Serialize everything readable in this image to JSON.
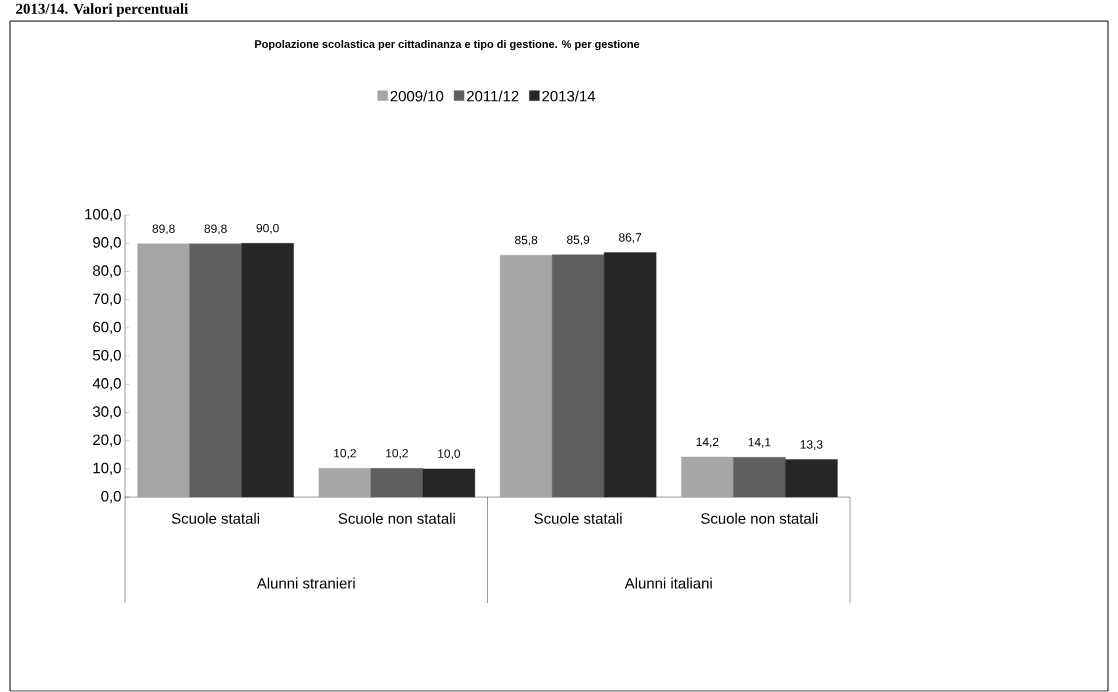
{
  "chart_data": {
    "type": "bar",
    "title": "Popolazione scolastica per cittadinanza e tipo di gestione. % per gestione",
    "categories": [
      "Scuole statali",
      "Scuole non statali",
      "Scuole statali",
      "Scuole non statali"
    ],
    "series": [
      {
        "name": "2009/10",
        "color": "#a6a6a6",
        "values": [
          89.8,
          10.2,
          85.8,
          14.2
        ],
        "value_labels": [
          "89,8",
          "10,2",
          "85,8",
          "14,2"
        ]
      },
      {
        "name": "2011/12",
        "color": "#5f5f5f",
        "values": [
          89.8,
          10.2,
          85.9,
          14.1
        ],
        "value_labels": [
          "89,8",
          "10,2",
          "85,9",
          "14,1"
        ]
      },
      {
        "name": "2013/14",
        "color": "#262626",
        "values": [
          90.0,
          10.0,
          86.7,
          13.3
        ],
        "value_labels": [
          "90,0",
          "10,0",
          "86,7",
          "13,3"
        ]
      }
    ],
    "ylim": [
      0,
      100
    ],
    "yticks": [
      {
        "value": 0,
        "label": "0,0"
      },
      {
        "value": 10,
        "label": "10,0"
      },
      {
        "value": 20,
        "label": "20,0"
      },
      {
        "value": 30,
        "label": "30,0"
      },
      {
        "value": 40,
        "label": "40,0"
      },
      {
        "value": 50,
        "label": "50,0"
      },
      {
        "value": 60,
        "label": "60,0"
      },
      {
        "value": 70,
        "label": "70,0"
      },
      {
        "value": 80,
        "label": "80,0"
      },
      {
        "value": 90,
        "label": "90,0"
      },
      {
        "value": 100,
        "label": "100,0"
      }
    ],
    "legend": "top",
    "annotations": [
      "2013/14. Valori percentuali",
      "Alunni stranieri",
      "Alunni italiani"
    ]
  }
}
